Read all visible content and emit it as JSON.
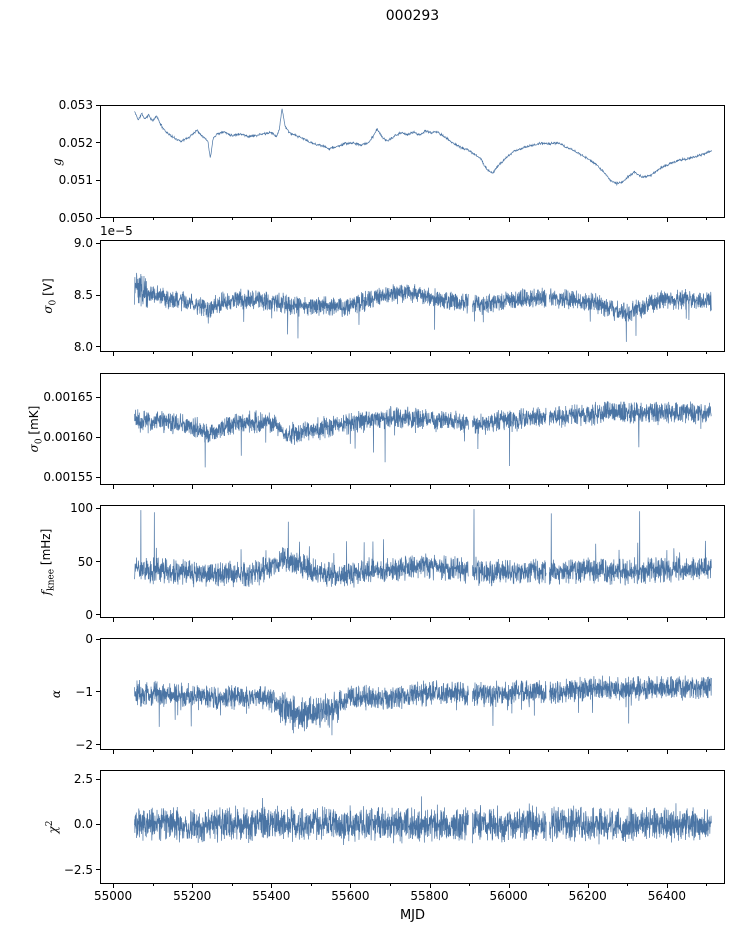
{
  "chart_data": {
    "type": "line",
    "title": "000293",
    "xlabel": "MJD",
    "line_color": "#4a74a4",
    "axis_color": "#000000",
    "x": {
      "lim": [
        54967,
        56547
      ],
      "data_range": [
        55052,
        56515
      ],
      "major_ticks": [
        55000,
        55200,
        55400,
        55600,
        55800,
        56000,
        56200,
        56400
      ],
      "major_tick_labels": [
        "55000",
        "55200",
        "55400",
        "55600",
        "55800",
        "56000",
        "56200",
        "56400"
      ],
      "minor_tick_step": 100,
      "gaps": [
        [
          55899,
          55909
        ],
        [
          56096,
          56104
        ]
      ]
    },
    "panels": [
      {
        "id": "g",
        "ylabel": {
          "main": "g",
          "sub": "",
          "sup": "",
          "unit": ""
        },
        "offset_text": "",
        "ylim": [
          0.05,
          0.053
        ],
        "yticks": [
          0.05,
          0.051,
          0.052,
          0.053
        ],
        "ytick_labels": [
          "0.050",
          "0.051",
          "0.052",
          "0.053"
        ],
        "series": {
          "trend_x": [
            55052,
            55062,
            55070,
            55078,
            55088,
            55098,
            55108,
            55118,
            55132,
            55150,
            55170,
            55190,
            55210,
            55228,
            55238,
            55244,
            55252,
            55262,
            55280,
            55300,
            55320,
            55340,
            55360,
            55380,
            55400,
            55412,
            55420,
            55426,
            55434,
            55444,
            55460,
            55480,
            55500,
            55520,
            55545,
            55565,
            55585,
            55605,
            55625,
            55645,
            55658,
            55668,
            55680,
            55695,
            55710,
            55730,
            55745,
            55760,
            55775,
            55790,
            55805,
            55820,
            55840,
            55860,
            55880,
            55900,
            55915,
            55930,
            55945,
            55960,
            55975,
            55995,
            56015,
            56040,
            56065,
            56085,
            56105,
            56125,
            56145,
            56165,
            56185,
            56205,
            56225,
            56245,
            56260,
            56275,
            56290,
            56305,
            56320,
            56340,
            56360,
            56380,
            56400,
            56420,
            56440,
            56460,
            56480,
            56500,
            56515
          ],
          "trend_y": [
            0.05285,
            0.05262,
            0.0528,
            0.05265,
            0.05276,
            0.05258,
            0.05274,
            0.0525,
            0.0523,
            0.05215,
            0.05205,
            0.05215,
            0.05235,
            0.05215,
            0.05205,
            0.0516,
            0.05215,
            0.05225,
            0.0523,
            0.0522,
            0.05225,
            0.05218,
            0.0522,
            0.05225,
            0.05228,
            0.05218,
            0.0524,
            0.05295,
            0.05245,
            0.05228,
            0.0522,
            0.05212,
            0.052,
            0.05195,
            0.05185,
            0.0519,
            0.05198,
            0.052,
            0.05195,
            0.052,
            0.0522,
            0.05238,
            0.05215,
            0.05205,
            0.05218,
            0.05228,
            0.05222,
            0.0523,
            0.05222,
            0.05232,
            0.05228,
            0.0523,
            0.05215,
            0.052,
            0.05188,
            0.0518,
            0.05168,
            0.05158,
            0.0513,
            0.05118,
            0.0514,
            0.0516,
            0.05178,
            0.05188,
            0.05195,
            0.052,
            0.05198,
            0.052,
            0.0519,
            0.0518,
            0.05168,
            0.05155,
            0.0514,
            0.05118,
            0.05098,
            0.0509,
            0.05095,
            0.0511,
            0.05122,
            0.05108,
            0.05112,
            0.05128,
            0.0514,
            0.05148,
            0.05155,
            0.05158,
            0.05165,
            0.05172,
            0.0518
          ],
          "noise_amp": 4e-05,
          "samples": 1600,
          "spike_prob": 0,
          "spike_mag": 0,
          "spike_dir": -1,
          "boosts": [],
          "big_spikes": [],
          "use_gaps": false,
          "seed": 11
        }
      },
      {
        "id": "sigma0-v",
        "ylabel": {
          "main": "σ",
          "sub": "0",
          "sup": "",
          "unit": "[V]"
        },
        "offset_text": "1e−5",
        "ylim": [
          7.95,
          9.03
        ],
        "yticks": [
          8.0,
          8.5,
          9.0
        ],
        "ytick_labels": [
          "8.0",
          "8.5",
          "9.0"
        ],
        "series": {
          "trend_x": [
            55052,
            55065,
            55085,
            55120,
            55160,
            55200,
            55240,
            55270,
            55300,
            55340,
            55380,
            55420,
            55460,
            55500,
            55540,
            55580,
            55620,
            55660,
            55700,
            55740,
            55780,
            55820,
            55860,
            55900,
            55940,
            55980,
            56020,
            56060,
            56100,
            56140,
            56180,
            56220,
            56260,
            56300,
            56340,
            56380,
            56420,
            56460,
            56515
          ],
          "trend_y": [
            8.58,
            8.55,
            8.52,
            8.48,
            8.45,
            8.42,
            8.36,
            8.42,
            8.46,
            8.46,
            8.44,
            8.42,
            8.4,
            8.38,
            8.4,
            8.38,
            8.42,
            8.46,
            8.5,
            8.52,
            8.5,
            8.46,
            8.44,
            8.42,
            8.4,
            8.44,
            8.46,
            8.46,
            8.48,
            8.46,
            8.44,
            8.42,
            8.36,
            8.32,
            8.38,
            8.44,
            8.46,
            8.46,
            8.45
          ],
          "noise_amp": 0.11,
          "samples": 2800,
          "spike_prob": 0.007,
          "spike_mag": 0.3,
          "spike_dir": -1,
          "boosts": [
            {
              "from": 55052,
              "to": 55085,
              "factor": 1.9
            }
          ],
          "big_spikes": [],
          "use_gaps": true,
          "seed": 23
        }
      },
      {
        "id": "sigma0-mk",
        "ylabel": {
          "main": "σ",
          "sub": "0",
          "sup": "",
          "unit": "[mK]"
        },
        "offset_text": "",
        "ylim": [
          0.00154,
          0.00168
        ],
        "yticks": [
          0.00155,
          0.0016,
          0.00165
        ],
        "ytick_labels": [
          "0.00155",
          "0.00160",
          "0.00165"
        ],
        "series": {
          "trend_x": [
            55052,
            55090,
            55130,
            55170,
            55210,
            55245,
            55280,
            55320,
            55360,
            55400,
            55430,
            55460,
            55500,
            55540,
            55580,
            55620,
            55660,
            55700,
            55740,
            55780,
            55820,
            55860,
            55900,
            55940,
            55980,
            56020,
            56060,
            56100,
            56140,
            56180,
            56220,
            56260,
            56300,
            56340,
            56380,
            56420,
            56460,
            56515
          ],
          "trend_y": [
            0.001621,
            0.00162,
            0.001619,
            0.001616,
            0.00161,
            0.001602,
            0.001614,
            0.001618,
            0.001619,
            0.001618,
            0.001606,
            0.001604,
            0.001608,
            0.001612,
            0.001616,
            0.001619,
            0.001621,
            0.001624,
            0.001625,
            0.001623,
            0.001621,
            0.00162,
            0.001618,
            0.001616,
            0.00162,
            0.001622,
            0.001624,
            0.001625,
            0.001626,
            0.001628,
            0.001629,
            0.001631,
            0.00163,
            0.001632,
            0.00163,
            0.001631,
            0.00163,
            0.00163
          ],
          "noise_amp": 1.6e-05,
          "samples": 2800,
          "spike_prob": 0.006,
          "spike_mag": 5e-05,
          "spike_dir": -1,
          "boosts": [],
          "big_spikes": [],
          "use_gaps": true,
          "seed": 37
        }
      },
      {
        "id": "fknee",
        "ylabel": {
          "main": "f",
          "sub": "knee",
          "sup": "",
          "unit": "[mHz]"
        },
        "offset_text": "",
        "ylim": [
          -3,
          103
        ],
        "yticks": [
          0,
          50,
          100
        ],
        "ytick_labels": [
          "0",
          "50",
          "100"
        ],
        "series": {
          "trend_x": [
            55052,
            55100,
            55150,
            55200,
            55250,
            55300,
            55350,
            55395,
            55420,
            55445,
            55470,
            55500,
            55530,
            55570,
            55610,
            55650,
            55700,
            55750,
            55800,
            55850,
            55900,
            55950,
            56000,
            56050,
            56100,
            56150,
            56200,
            56250,
            56300,
            56350,
            56400,
            56450,
            56515
          ],
          "trend_y": [
            44,
            42,
            40,
            39,
            38,
            38,
            38,
            44,
            50,
            52,
            48,
            42,
            38,
            37,
            38,
            40,
            42,
            44,
            46,
            44,
            40,
            39,
            40,
            40,
            40,
            41,
            42,
            41,
            40,
            42,
            42,
            43,
            42
          ],
          "noise_amp": 14,
          "samples": 2800,
          "spike_prob": 0.005,
          "spike_mag": 28,
          "spike_dir": 1,
          "boosts": [],
          "big_spikes": [
            {
              "x": 55068,
              "y": 99
            },
            {
              "x": 55102,
              "y": 97
            },
            {
              "x": 55442,
              "y": 88
            },
            {
              "x": 55913,
              "y": 100
            },
            {
              "x": 56109,
              "y": 96
            },
            {
              "x": 56333,
              "y": 98
            }
          ],
          "use_gaps": true,
          "seed": 51
        }
      },
      {
        "id": "alpha",
        "ylabel": {
          "main": "α",
          "sub": "",
          "sup": "",
          "unit": ""
        },
        "offset_text": "",
        "ylim": [
          -2.1,
          0.02
        ],
        "yticks": [
          -2,
          -1,
          0
        ],
        "ytick_labels": [
          "−2",
          "−1",
          "0"
        ],
        "series": {
          "trend_x": [
            55052,
            55100,
            55150,
            55200,
            55250,
            55300,
            55340,
            55380,
            55420,
            55450,
            55480,
            55510,
            55540,
            55570,
            55600,
            55640,
            55680,
            55720,
            55760,
            55800,
            55850,
            55900,
            55950,
            56000,
            56050,
            56100,
            56150,
            56200,
            56250,
            56300,
            56350,
            56400,
            56450,
            56515
          ],
          "trend_y": [
            -1.02,
            -1.05,
            -1.05,
            -1.08,
            -1.1,
            -1.08,
            -1.12,
            -1.1,
            -1.25,
            -1.4,
            -1.45,
            -1.42,
            -1.35,
            -1.25,
            -1.1,
            -1.12,
            -1.15,
            -1.1,
            -1.05,
            -1.02,
            -1.05,
            -1.02,
            -1.05,
            -1.03,
            -1.0,
            -1.0,
            -0.98,
            -0.95,
            -0.95,
            -0.92,
            -0.95,
            -0.92,
            -0.92,
            -0.9
          ],
          "noise_amp": 0.27,
          "samples": 2800,
          "spike_prob": 0.01,
          "spike_mag": 0.45,
          "spike_dir": -1,
          "boosts": [
            {
              "from": 55420,
              "to": 55580,
              "factor": 1.5
            }
          ],
          "big_spikes": [],
          "use_gaps": true,
          "seed": 67
        }
      },
      {
        "id": "chi2",
        "ylabel": {
          "main": "χ",
          "sub": "",
          "sup": "2",
          "unit": ""
        },
        "offset_text": "",
        "ylim": [
          -3.3,
          3.0
        ],
        "yticks": [
          -2.5,
          0.0,
          2.5
        ],
        "ytick_labels": [
          "−2.5",
          "0.0",
          "2.5"
        ],
        "series": {
          "trend_x": [
            55052,
            56515
          ],
          "trend_y": [
            0,
            0
          ],
          "noise_amp": 1.1,
          "samples": 3000,
          "spike_prob": 0.012,
          "spike_mag": 1.1,
          "spike_dir": 0,
          "boosts": [],
          "big_spikes": [],
          "use_gaps": true,
          "seed": 83
        }
      }
    ]
  }
}
